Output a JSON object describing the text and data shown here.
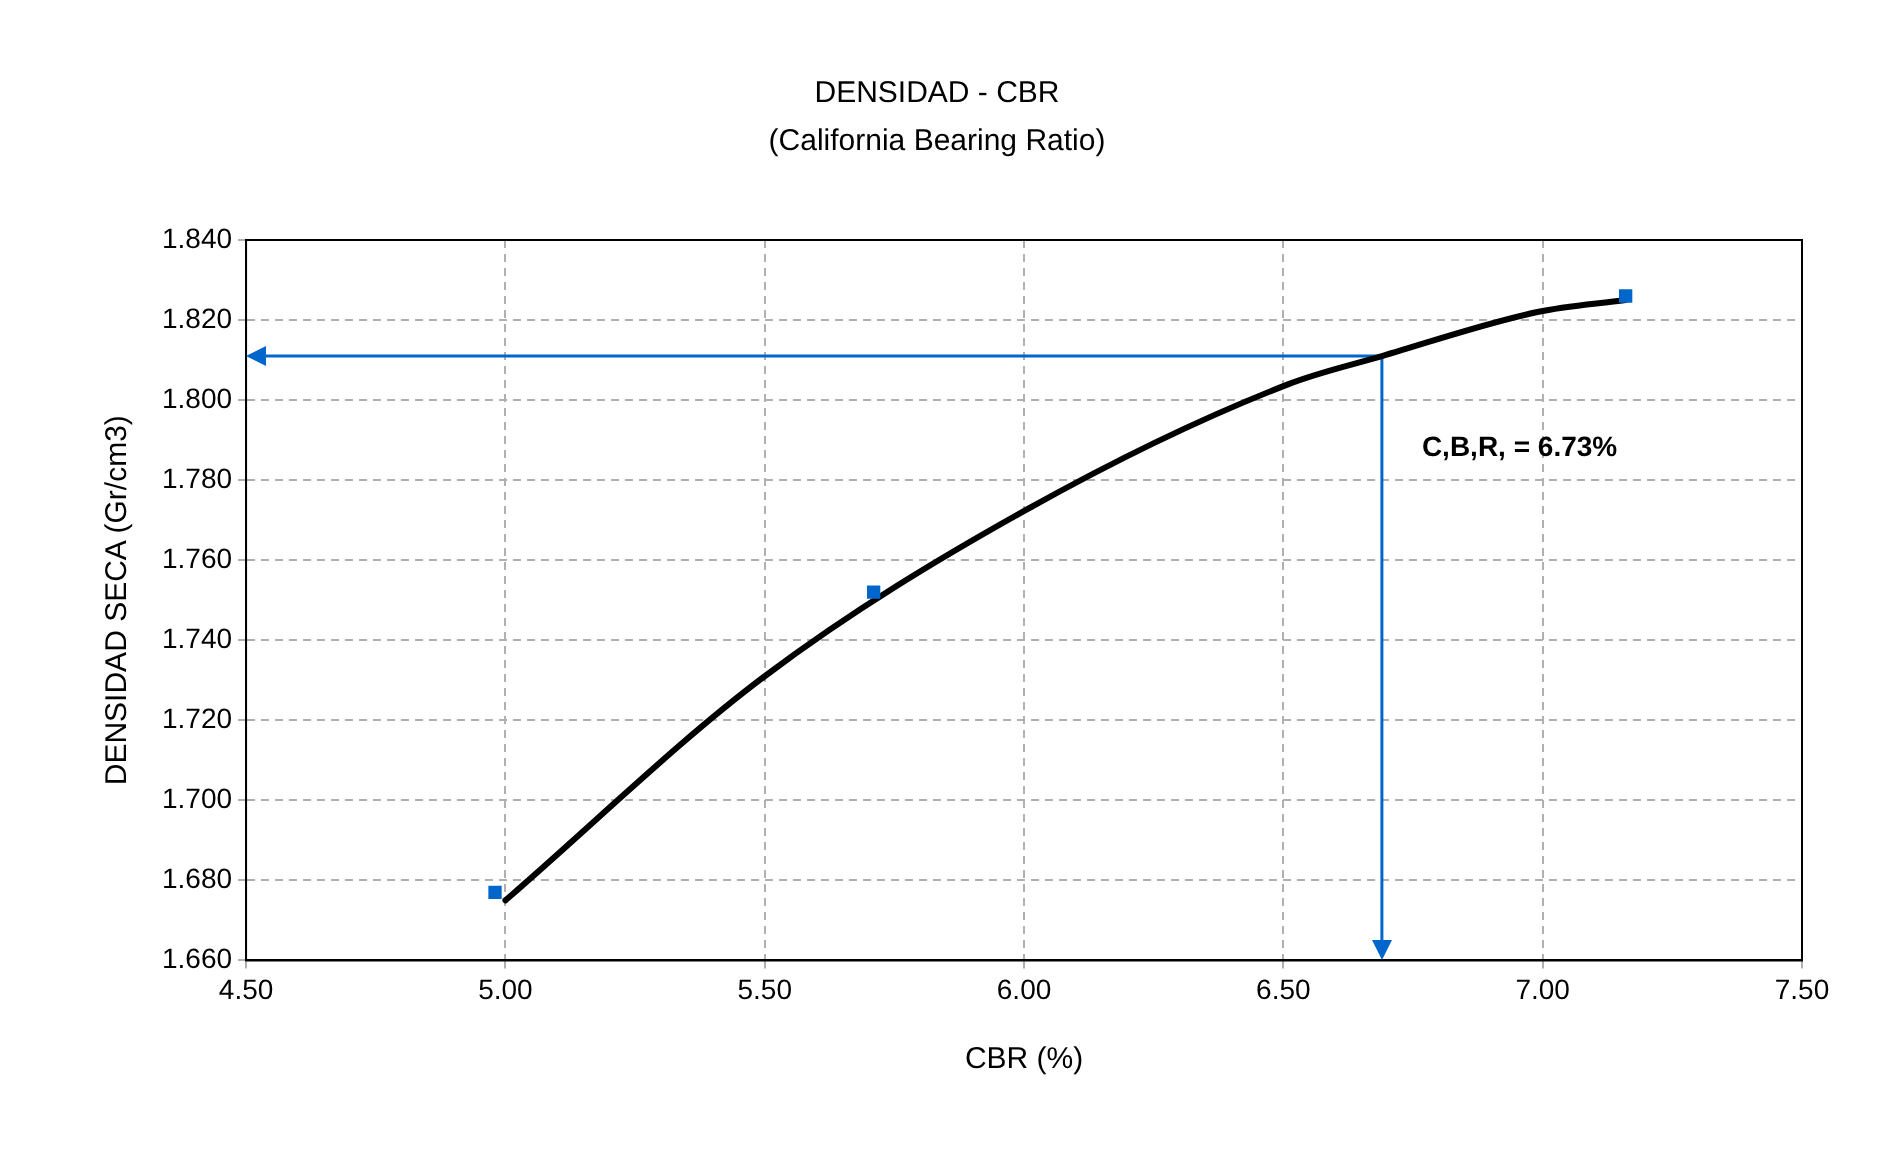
{
  "chart_data": {
    "type": "scatter",
    "title": "DENSIDAD - CBR",
    "subtitle": "(California Bearing Ratio)",
    "xlabel": "CBR (%)",
    "ylabel": "DENSIDAD SECA (Gr/cm3)",
    "series": [
      {
        "type": "scatter",
        "color": "#0066cc",
        "marker": "square",
        "x": [
          4.98,
          5.71,
          7.16
        ],
        "values": [
          1.677,
          1.752,
          1.826
        ]
      },
      {
        "type": "line",
        "color": "#000000",
        "marker": "none",
        "x": [
          5.0,
          5.5,
          6.01,
          6.51,
          6.69,
          6.99,
          7.16
        ],
        "values": [
          1.675,
          1.731,
          1.773,
          1.804,
          1.811,
          1.822,
          1.825
        ]
      }
    ],
    "xlim": [
      4.5,
      7.5
    ],
    "xticks": [
      {
        "value": 4.5,
        "label": "4.50"
      },
      {
        "value": 5,
        "label": "5.00"
      },
      {
        "value": 5.5,
        "label": "5.50"
      },
      {
        "value": 6,
        "label": "6.00"
      },
      {
        "value": 6.5,
        "label": "6.50"
      },
      {
        "value": 7,
        "label": "7.00"
      },
      {
        "value": 7.5,
        "label": "7.50"
      }
    ],
    "ylim": [
      1.66,
      1.84
    ],
    "yticks": [
      {
        "value": 1.66,
        "label": "1.660"
      },
      {
        "value": 1.68,
        "label": "1.680"
      },
      {
        "value": 1.7,
        "label": "1.700"
      },
      {
        "value": 1.72,
        "label": "1.720"
      },
      {
        "value": 1.74,
        "label": "1.740"
      },
      {
        "value": 1.76,
        "label": "1.760"
      },
      {
        "value": 1.78,
        "label": "1.780"
      },
      {
        "value": 1.8,
        "label": "1.800"
      },
      {
        "value": 1.82,
        "label": "1.820"
      },
      {
        "value": 1.84,
        "label": "1.840"
      }
    ],
    "ref_lines": [
      {
        "axis": "x",
        "value": 6.69,
        "color": "#0066cc"
      },
      {
        "axis": "y",
        "value": 1.811,
        "color": "#0066cc"
      }
    ],
    "annotations": [
      "C,B,R, = 6.73%"
    ],
    "grid": true,
    "legend": false
  }
}
